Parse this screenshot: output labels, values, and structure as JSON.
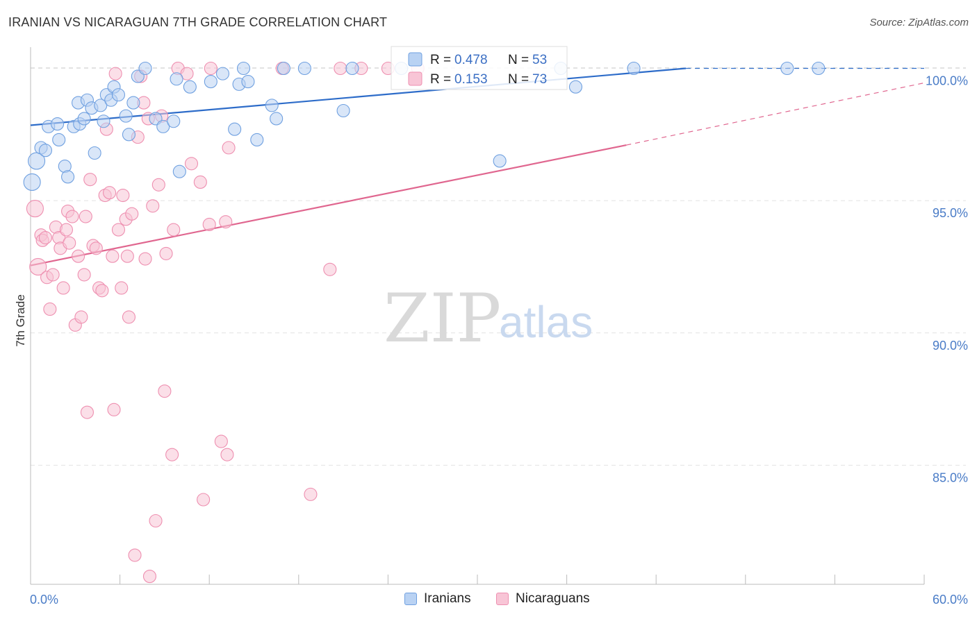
{
  "title": "IRANIAN VS NICARAGUAN 7TH GRADE CORRELATION CHART",
  "source": "Source: ZipAtlas.com",
  "chart_data": {
    "type": "scatter",
    "title": "IRANIAN VS NICARAGUAN 7TH GRADE CORRELATION CHART",
    "xlabel": "",
    "ylabel": "7th Grade",
    "xlim": [
      0,
      60
    ],
    "ylim": [
      80.5,
      100.8
    ],
    "x_tick_labels": [
      "0.0%",
      "60.0%"
    ],
    "y_ticks": [
      85,
      90,
      95,
      100
    ],
    "y_tick_labels": [
      "85.0%",
      "90.0%",
      "95.0%",
      "100.0%"
    ],
    "watermark": {
      "zip": "ZIP",
      "atlas": "atlas"
    },
    "legend": [
      {
        "r_label": "R =",
        "r_value": "0.478",
        "n_label": "N =",
        "n_value": "53"
      },
      {
        "r_label": "R =",
        "r_value": "0.153",
        "n_label": "N =",
        "n_value": "73"
      }
    ],
    "series": [
      {
        "name": "Iranians",
        "color": "#6fa0e0",
        "fill": "#b9d2f3",
        "line_color": "#2d6cc9",
        "trend": {
          "x0": 0,
          "y0": 97.85,
          "x1": 44.0,
          "y1": 100.0,
          "dash_to_x": 60,
          "dash_to_y": 100.0
        },
        "points": [
          [
            0.4,
            96.5
          ],
          [
            0.7,
            97.0
          ],
          [
            1.0,
            96.9
          ],
          [
            1.2,
            97.8
          ],
          [
            1.8,
            97.9
          ],
          [
            1.9,
            97.3
          ],
          [
            2.3,
            96.3
          ],
          [
            2.5,
            95.9
          ],
          [
            2.9,
            97.8
          ],
          [
            3.2,
            98.7
          ],
          [
            3.3,
            97.9
          ],
          [
            3.6,
            98.1
          ],
          [
            3.8,
            98.8
          ],
          [
            4.1,
            98.5
          ],
          [
            4.3,
            96.8
          ],
          [
            4.7,
            98.6
          ],
          [
            4.9,
            98.0
          ],
          [
            5.1,
            99.0
          ],
          [
            5.4,
            98.8
          ],
          [
            5.6,
            99.3
          ],
          [
            5.9,
            99.0
          ],
          [
            6.4,
            98.2
          ],
          [
            6.6,
            97.5
          ],
          [
            6.9,
            98.7
          ],
          [
            7.2,
            99.7
          ],
          [
            7.7,
            100.0
          ],
          [
            8.4,
            98.1
          ],
          [
            8.9,
            97.8
          ],
          [
            9.6,
            98.0
          ],
          [
            9.8,
            99.6
          ],
          [
            10.0,
            96.1
          ],
          [
            10.7,
            99.3
          ],
          [
            12.1,
            99.5
          ],
          [
            12.9,
            99.8
          ],
          [
            13.7,
            97.7
          ],
          [
            14.0,
            99.4
          ],
          [
            14.3,
            100.0
          ],
          [
            14.6,
            99.5
          ],
          [
            15.2,
            97.3
          ],
          [
            16.2,
            98.6
          ],
          [
            16.5,
            98.1
          ],
          [
            17.0,
            100.0
          ],
          [
            18.4,
            100.0
          ],
          [
            21.0,
            98.4
          ],
          [
            21.6,
            100.0
          ],
          [
            24.9,
            100.0
          ],
          [
            31.5,
            96.5
          ],
          [
            35.6,
            100.0
          ],
          [
            36.6,
            99.3
          ],
          [
            40.5,
            100.0
          ],
          [
            50.8,
            100.0
          ],
          [
            52.9,
            100.0
          ],
          [
            0.1,
            95.7
          ]
        ]
      },
      {
        "name": "Nicaraguans",
        "color": "#ee8fb0",
        "fill": "#f8c5d6",
        "line_color": "#e0668f",
        "trend": {
          "x0": 0,
          "y0": 92.55,
          "x1": 40.0,
          "y1": 97.1,
          "dash_to_x": 60,
          "dash_to_y": 99.45
        },
        "points": [
          [
            0.3,
            94.7
          ],
          [
            0.5,
            92.5
          ],
          [
            0.7,
            93.7
          ],
          [
            0.8,
            93.5
          ],
          [
            1.0,
            93.6
          ],
          [
            1.1,
            92.1
          ],
          [
            1.3,
            90.9
          ],
          [
            1.5,
            92.2
          ],
          [
            1.7,
            94.0
          ],
          [
            1.9,
            93.6
          ],
          [
            2.0,
            93.2
          ],
          [
            2.2,
            91.7
          ],
          [
            2.4,
            93.9
          ],
          [
            2.5,
            94.6
          ],
          [
            2.6,
            93.4
          ],
          [
            2.8,
            94.4
          ],
          [
            3.0,
            90.3
          ],
          [
            3.2,
            92.9
          ],
          [
            3.4,
            90.6
          ],
          [
            3.6,
            92.2
          ],
          [
            3.7,
            94.4
          ],
          [
            3.8,
            87.0
          ],
          [
            4.0,
            95.8
          ],
          [
            4.2,
            93.3
          ],
          [
            4.4,
            93.2
          ],
          [
            4.6,
            91.7
          ],
          [
            4.8,
            91.6
          ],
          [
            5.0,
            95.2
          ],
          [
            5.1,
            97.7
          ],
          [
            5.3,
            95.3
          ],
          [
            5.5,
            92.9
          ],
          [
            5.6,
            87.1
          ],
          [
            5.7,
            99.8
          ],
          [
            5.9,
            93.9
          ],
          [
            6.1,
            91.7
          ],
          [
            6.2,
            95.2
          ],
          [
            6.4,
            94.3
          ],
          [
            6.5,
            92.9
          ],
          [
            6.6,
            90.6
          ],
          [
            6.8,
            94.5
          ],
          [
            7.0,
            81.6
          ],
          [
            7.2,
            97.4
          ],
          [
            7.4,
            99.7
          ],
          [
            7.6,
            98.7
          ],
          [
            7.7,
            92.8
          ],
          [
            7.9,
            98.1
          ],
          [
            8.0,
            80.8
          ],
          [
            8.2,
            94.8
          ],
          [
            8.4,
            82.9
          ],
          [
            8.6,
            95.6
          ],
          [
            8.8,
            98.2
          ],
          [
            9.0,
            87.8
          ],
          [
            9.1,
            93.0
          ],
          [
            9.5,
            85.4
          ],
          [
            9.6,
            93.9
          ],
          [
            9.9,
            100.0
          ],
          [
            10.5,
            99.8
          ],
          [
            10.8,
            96.4
          ],
          [
            11.4,
            95.7
          ],
          [
            11.6,
            83.7
          ],
          [
            12.0,
            94.1
          ],
          [
            12.1,
            100.0
          ],
          [
            12.8,
            85.9
          ],
          [
            13.1,
            94.2
          ],
          [
            13.2,
            85.4
          ],
          [
            13.3,
            97.0
          ],
          [
            16.9,
            100.0
          ],
          [
            18.8,
            83.9
          ],
          [
            20.1,
            92.4
          ],
          [
            20.8,
            100.0
          ],
          [
            22.2,
            100.0
          ],
          [
            24.0,
            100.0
          ],
          [
            26.0,
            100.0
          ]
        ]
      }
    ]
  }
}
